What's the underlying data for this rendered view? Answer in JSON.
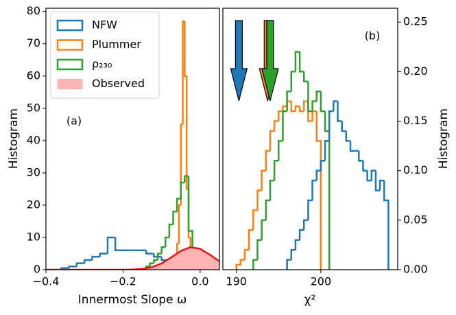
{
  "chart_data": [
    {
      "type": "histogram",
      "xlabel": "Innermost Slope ω",
      "ylabel": "Histogram",
      "annotation": "(a)",
      "xlim": [
        -0.4,
        0.05
      ],
      "ylim": [
        0,
        81
      ],
      "xticks": [
        {
          "value": -0.4,
          "label": "−0.4"
        },
        {
          "value": -0.2,
          "label": "−0.2"
        },
        {
          "value": 0,
          "label": "0.0"
        }
      ],
      "yticks": [
        0,
        10,
        20,
        30,
        40,
        50,
        60,
        70,
        80
      ],
      "yaxis": "left",
      "legend": "upper left",
      "series": [
        {
          "name": "NFW",
          "color": "#1f77b4",
          "bins": [
            -0.36,
            -0.34,
            -0.32,
            -0.3,
            -0.28,
            -0.26,
            -0.24,
            -0.22,
            -0.2,
            -0.18,
            -0.16,
            -0.14,
            -0.12,
            -0.1,
            -0.08,
            -0.06,
            -0.04
          ],
          "values": [
            0.5,
            1,
            2,
            3,
            4,
            5,
            10,
            6,
            6,
            6,
            6,
            5,
            4,
            3,
            2,
            1
          ]
        },
        {
          "name": "Plummer",
          "color": "#ff7f0e",
          "bins": [
            -0.07,
            -0.065,
            -0.06,
            -0.055,
            -0.05,
            -0.045,
            -0.04,
            -0.035,
            -0.03,
            -0.025,
            -0.02,
            -0.015
          ],
          "values": [
            1,
            3,
            8,
            20,
            45,
            77,
            60,
            25,
            10,
            3,
            1
          ]
        },
        {
          "name": "ρ₂₃₀",
          "color": "#2ca02c",
          "bins": [
            -0.14,
            -0.13,
            -0.12,
            -0.11,
            -0.1,
            -0.09,
            -0.08,
            -0.07,
            -0.06,
            -0.05,
            -0.04,
            -0.03,
            -0.02
          ],
          "values": [
            1,
            2,
            3,
            5,
            7,
            10,
            14,
            18,
            22,
            27,
            29,
            12
          ]
        },
        {
          "name": "Observed",
          "color": "#ee1111",
          "fill": "#ffb3b3",
          "x": [
            -0.4,
            -0.2,
            -0.175,
            -0.15,
            -0.125,
            -0.1,
            -0.075,
            -0.05,
            -0.025,
            0,
            0.025,
            0.05
          ],
          "values": [
            0,
            0.01,
            0.06,
            0.24,
            0.78,
            1.95,
            3.82,
            5.85,
            6.97,
            6.46,
            4.67,
            2.6
          ]
        }
      ]
    },
    {
      "type": "histogram",
      "xlabel": "χ²",
      "ylabel": "Histogram",
      "annotation": "(b)",
      "xlim": [
        188.4,
        209.1
      ],
      "ylim": [
        0,
        0.264
      ],
      "xticks": [
        190,
        200
      ],
      "yticks": [
        {
          "value": 0,
          "label": "0.00"
        },
        {
          "value": 0.05,
          "label": "0.05"
        },
        {
          "value": 0.1,
          "label": "0.10"
        },
        {
          "value": 0.15,
          "label": "0.15"
        },
        {
          "value": 0.2,
          "label": "0.20"
        },
        {
          "value": 0.25,
          "label": "0.25"
        }
      ],
      "yaxis": "right",
      "arrows": [
        {
          "x": 190.3,
          "color": "#1f77b4"
        },
        {
          "x": 193.7,
          "color": "#ff7f0e"
        },
        {
          "x": 194.0,
          "color": "#2ca02c"
        }
      ],
      "series": [
        {
          "color": "#ff7f0e",
          "bins": [
            190,
            190.5,
            191,
            191.5,
            192,
            192.5,
            193,
            193.5,
            194,
            194.5,
            195,
            195.5,
            196,
            196.5,
            197,
            197.5,
            198,
            198.5,
            199,
            199.5,
            200
          ],
          "values": [
            0.005,
            0.01,
            0.02,
            0.04,
            0.06,
            0.08,
            0.1,
            0.12,
            0.14,
            0.15,
            0.16,
            0.165,
            0.17,
            0.16,
            0.165,
            0.16,
            0.17,
            0.15,
            0.16,
            0.13
          ]
        },
        {
          "color": "#2ca02c",
          "bins": [
            192,
            192.5,
            193,
            193.5,
            194,
            194.5,
            195,
            195.5,
            196,
            196.5,
            197,
            197.5,
            198,
            198.5,
            199,
            199.5,
            200,
            200.5,
            201
          ],
          "values": [
            0.01,
            0.03,
            0.05,
            0.07,
            0.09,
            0.11,
            0.13,
            0.16,
            0.18,
            0.2,
            0.22,
            0.2,
            0.19,
            0.16,
            0.17,
            0.18,
            0.16,
            0.14
          ]
        },
        {
          "color": "#1f77b4",
          "bins": [
            196,
            196.5,
            197,
            197.5,
            198,
            198.5,
            199,
            199.5,
            200,
            200.5,
            201,
            201.5,
            202,
            202.5,
            203,
            203.5,
            204,
            204.5,
            205,
            205.5,
            206,
            206.5,
            207,
            207.5,
            208
          ],
          "values": [
            0.01,
            0.02,
            0.03,
            0.04,
            0.05,
            0.07,
            0.09,
            0.1,
            0.11,
            0.13,
            0.16,
            0.17,
            0.15,
            0.14,
            0.13,
            0.12,
            0.12,
            0.11,
            0.1,
            0.09,
            0.1,
            0.08,
            0.09,
            0.07
          ]
        }
      ]
    }
  ]
}
